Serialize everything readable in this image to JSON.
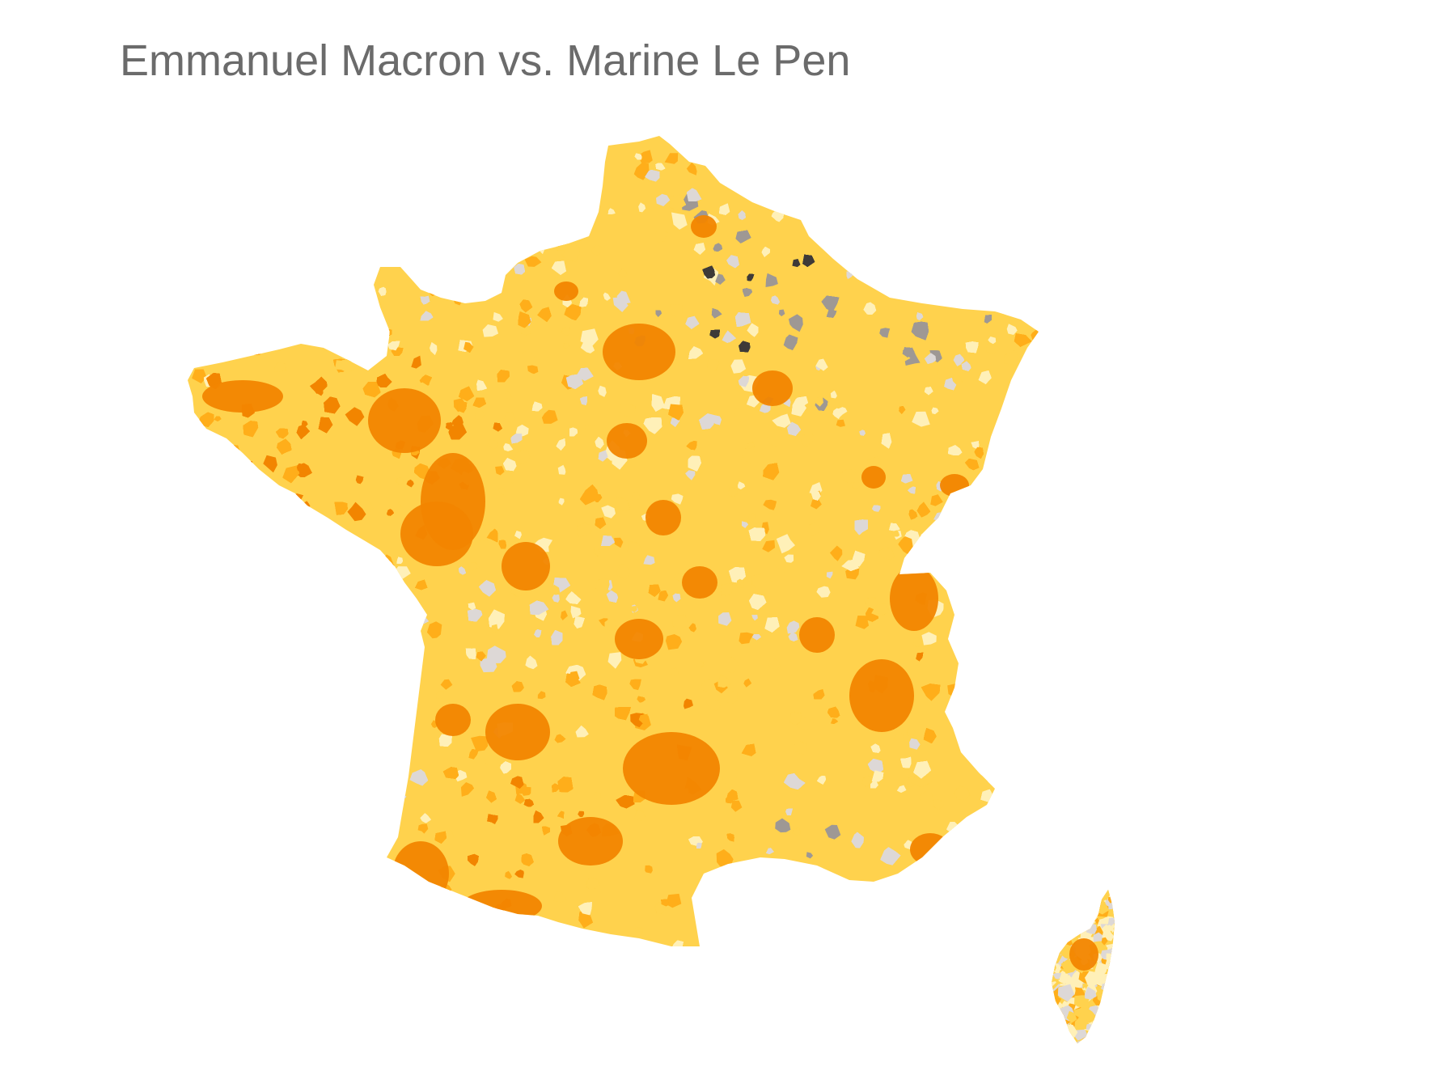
{
  "title": "Emmanuel Macron vs. Marine Le Pen",
  "map": {
    "regions": [
      "france-mainland",
      "corsica"
    ],
    "palette": {
      "macron_strong": "#f28500",
      "macron_medium": "#ffae1a",
      "macron_light": "#ffd24d",
      "macron_faint": "#fff0b8",
      "lepen_faint": "#ddd8d6",
      "lepen_medium": "#9e9894",
      "lepen_strong": "#3e3a38"
    }
  }
}
